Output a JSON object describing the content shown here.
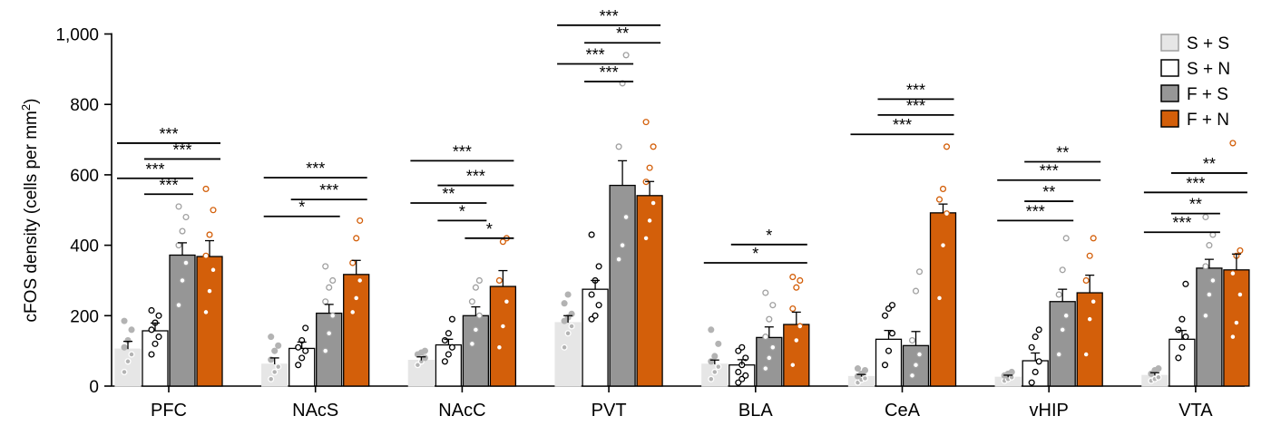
{
  "chart_data": {
    "type": "bar",
    "ylabel_main": "cFOS density (cells per mm",
    "ylabel_sup": "2",
    "ylabel_close": ")",
    "ylim": [
      0,
      1000
    ],
    "yticks": [
      0,
      200,
      400,
      600,
      800,
      1000
    ],
    "ytick_labels": [
      "0",
      "200",
      "400",
      "600",
      "800",
      "1,000"
    ],
    "categories": [
      "PFC",
      "NAcS",
      "NAcC",
      "PVT",
      "BLA",
      "CeA",
      "vHIP",
      "VTA"
    ],
    "series": [
      {
        "name": "S + S",
        "fill": "#e6e6e6",
        "edge": "#e6e6e6",
        "dot_fill": "#b3b3b3",
        "dot_edge": "#b3b3b3",
        "err_color": "#000000",
        "values": [
          105,
          62,
          73,
          180,
          62,
          27,
          25,
          30
        ],
        "sem": [
          22,
          18,
          10,
          20,
          12,
          6,
          6,
          8
        ],
        "points": [
          [
            40,
            70,
            90,
            110,
            130,
            160,
            185
          ],
          [
            20,
            40,
            55,
            75,
            100,
            115,
            140
          ],
          [
            60,
            70,
            80,
            90,
            95,
            100
          ],
          [
            110,
            150,
            170,
            185,
            195,
            205,
            235,
            260
          ],
          [
            20,
            40,
            55,
            70,
            85,
            120,
            160
          ],
          [
            10,
            18,
            22,
            28,
            35,
            45,
            50
          ],
          [
            15,
            20,
            25,
            30,
            35,
            40
          ],
          [
            15,
            20,
            25,
            35,
            45,
            50
          ]
        ]
      },
      {
        "name": "S + N",
        "fill": "#ffffff",
        "edge": "#000000",
        "dot_fill": "#ffffff",
        "dot_edge": "#000000",
        "err_color": "#000000",
        "values": [
          157,
          107,
          117,
          275,
          60,
          133,
          72,
          133
        ],
        "sem": [
          22,
          18,
          16,
          25,
          15,
          25,
          22,
          25
        ],
        "points": [
          [
            90,
            120,
            140,
            160,
            180,
            200,
            215
          ],
          [
            60,
            80,
            100,
            110,
            130,
            165
          ],
          [
            70,
            90,
            110,
            130,
            150,
            190
          ],
          [
            190,
            200,
            230,
            260,
            300,
            340,
            430
          ],
          [
            10,
            20,
            30,
            40,
            60,
            80,
            100,
            110
          ],
          [
            60,
            100,
            150,
            200,
            220,
            230
          ],
          [
            10,
            40,
            70,
            110,
            140,
            160
          ],
          [
            80,
            110,
            140,
            160,
            190,
            290
          ]
        ]
      },
      {
        "name": "F + S",
        "fill": "#969696",
        "edge": "#000000",
        "dot_fill": "#ffffff",
        "dot_edge": "#a0a0a0",
        "err_color": "#000000",
        "values": [
          372,
          207,
          200,
          570,
          138,
          115,
          240,
          335
        ],
        "sem": [
          35,
          25,
          25,
          70,
          30,
          40,
          35,
          25
        ],
        "points": [
          [
            230,
            300,
            350,
            400,
            440,
            480,
            510
          ],
          [
            100,
            150,
            200,
            240,
            280,
            300,
            340
          ],
          [
            120,
            160,
            200,
            240,
            280,
            300
          ],
          [
            360,
            400,
            480,
            680,
            860,
            940
          ],
          [
            50,
            80,
            110,
            140,
            190,
            230,
            265
          ],
          [
            30,
            60,
            90,
            130,
            270,
            325
          ],
          [
            90,
            160,
            200,
            260,
            330,
            420
          ],
          [
            200,
            260,
            300,
            340,
            400,
            430,
            480
          ]
        ]
      },
      {
        "name": "F + N",
        "fill": "#d35f0a",
        "edge": "#000000",
        "dot_fill": "#ffffff",
        "dot_edge": "#d35f0a",
        "err_color": "#000000",
        "values": [
          368,
          317,
          283,
          541,
          175,
          492,
          265,
          330
        ],
        "sem": [
          45,
          40,
          45,
          40,
          35,
          25,
          50,
          45
        ],
        "points": [
          [
            210,
            270,
            330,
            370,
            430,
            500,
            560
          ],
          [
            210,
            250,
            300,
            350,
            420,
            470
          ],
          [
            110,
            170,
            240,
            300,
            410,
            420
          ],
          [
            420,
            470,
            520,
            580,
            620,
            680,
            750
          ],
          [
            60,
            130,
            170,
            220,
            280,
            300,
            310
          ],
          [
            250,
            400,
            490,
            530,
            560,
            680
          ],
          [
            90,
            190,
            240,
            300,
            370,
            420
          ],
          [
            140,
            180,
            260,
            320,
            370,
            385,
            690
          ]
        ]
      }
    ],
    "significance": [
      {
        "cat": 0,
        "from": 0,
        "to": 3,
        "y": 690,
        "label": "***"
      },
      {
        "cat": 0,
        "from": 1,
        "to": 3,
        "y": 645,
        "label": "***"
      },
      {
        "cat": 0,
        "from": 0,
        "to": 2,
        "y": 590,
        "label": "***"
      },
      {
        "cat": 0,
        "from": 1,
        "to": 2,
        "y": 545,
        "label": "***"
      },
      {
        "cat": 1,
        "from": 0,
        "to": 3,
        "y": 592,
        "label": "***"
      },
      {
        "cat": 1,
        "from": 1,
        "to": 3,
        "y": 530,
        "label": "***"
      },
      {
        "cat": 1,
        "from": 0,
        "to": 2,
        "y": 482,
        "label": "*"
      },
      {
        "cat": 2,
        "from": 0,
        "to": 3,
        "y": 640,
        "label": "***"
      },
      {
        "cat": 2,
        "from": 1,
        "to": 3,
        "y": 570,
        "label": "***"
      },
      {
        "cat": 2,
        "from": 0,
        "to": 2,
        "y": 520,
        "label": "**"
      },
      {
        "cat": 2,
        "from": 1,
        "to": 2,
        "y": 470,
        "label": "*"
      },
      {
        "cat": 2,
        "from": 2,
        "to": 3,
        "y": 420,
        "label": "*"
      },
      {
        "cat": 3,
        "from": 0,
        "to": 3,
        "y": 1025,
        "label": "***"
      },
      {
        "cat": 3,
        "from": 1,
        "to": 3,
        "y": 975,
        "label": "**"
      },
      {
        "cat": 3,
        "from": 0,
        "to": 2,
        "y": 915,
        "label": "***"
      },
      {
        "cat": 3,
        "from": 1,
        "to": 2,
        "y": 865,
        "label": "***"
      },
      {
        "cat": 4,
        "from": 1,
        "to": 3,
        "y": 402,
        "label": "*"
      },
      {
        "cat": 4,
        "from": 0,
        "to": 3,
        "y": 350,
        "label": "*"
      },
      {
        "cat": 5,
        "from": 1,
        "to": 3,
        "y": 815,
        "label": "***"
      },
      {
        "cat": 5,
        "from": 1,
        "to": 3,
        "y": 770,
        "label": "***"
      },
      {
        "cat": 5,
        "from": 0,
        "to": 3,
        "y": 715,
        "label": "***"
      },
      {
        "cat": 6,
        "from": 1,
        "to": 3,
        "y": 637,
        "label": "**"
      },
      {
        "cat": 6,
        "from": 0,
        "to": 3,
        "y": 585,
        "label": "***"
      },
      {
        "cat": 6,
        "from": 1,
        "to": 2,
        "y": 525,
        "label": "**"
      },
      {
        "cat": 6,
        "from": 0,
        "to": 2,
        "y": 470,
        "label": "***"
      },
      {
        "cat": 7,
        "from": 1,
        "to": 3,
        "y": 605,
        "label": "**"
      },
      {
        "cat": 7,
        "from": 0,
        "to": 3,
        "y": 550,
        "label": "***"
      },
      {
        "cat": 7,
        "from": 1,
        "to": 2,
        "y": 490,
        "label": "**"
      },
      {
        "cat": 7,
        "from": 0,
        "to": 2,
        "y": 437,
        "label": "***"
      }
    ],
    "legend": {
      "position": "top-right",
      "entries": [
        "S + S",
        "S + N",
        "F + S",
        "F + N"
      ]
    }
  }
}
